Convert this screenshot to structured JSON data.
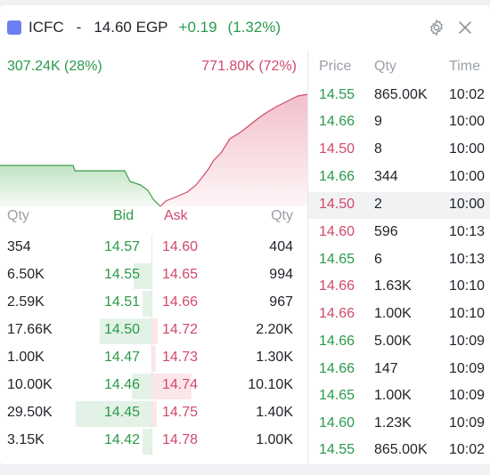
{
  "header": {
    "symbol": "ICFC",
    "separator": "-",
    "price": "14.60 EGP",
    "change": "+0.19",
    "change_pct": "(1.32%)",
    "swatch_color": "#6c7ff0",
    "settings_icon": "gear-icon",
    "close_icon": "close-icon"
  },
  "volume": {
    "buy": "307.24K (28%)",
    "sell": "771.80K (72%)",
    "buy_share": 0.28,
    "sell_share": 0.72
  },
  "orderbook": {
    "headers": {
      "qty_left": "Qty",
      "bid": "Bid",
      "ask": "Ask",
      "qty_right": "Qty"
    },
    "rows": [
      {
        "bid_qty": "354",
        "bid": "14.57",
        "ask": "14.60",
        "ask_qty": "404"
      },
      {
        "bid_qty": "6.50K",
        "bid": "14.55",
        "ask": "14.65",
        "ask_qty": "994"
      },
      {
        "bid_qty": "2.59K",
        "bid": "14.51",
        "ask": "14.66",
        "ask_qty": "967"
      },
      {
        "bid_qty": "17.66K",
        "bid": "14.50",
        "ask": "14.72",
        "ask_qty": "2.20K"
      },
      {
        "bid_qty": "1.00K",
        "bid": "14.47",
        "ask": "14.73",
        "ask_qty": "1.30K"
      },
      {
        "bid_qty": "10.00K",
        "bid": "14.46",
        "ask": "14.74",
        "ask_qty": "10.10K"
      },
      {
        "bid_qty": "29.50K",
        "bid": "14.45",
        "ask": "14.75",
        "ask_qty": "1.40K"
      },
      {
        "bid_qty": "3.15K",
        "bid": "14.42",
        "ask": "14.78",
        "ask_qty": "1.00K"
      }
    ]
  },
  "trades": {
    "headers": {
      "price": "Price",
      "qty": "Qty",
      "time": "Time"
    },
    "rows": [
      {
        "price": "14.55",
        "qty": "865.00K",
        "time": "10:02",
        "side": "up"
      },
      {
        "price": "14.66",
        "qty": "9",
        "time": "10:00",
        "side": "up"
      },
      {
        "price": "14.50",
        "qty": "8",
        "time": "10:00",
        "side": "dn"
      },
      {
        "price": "14.66",
        "qty": "344",
        "time": "10:00",
        "side": "up"
      },
      {
        "price": "14.50",
        "qty": "2",
        "time": "10:00",
        "side": "dn"
      },
      {
        "price": "14.60",
        "qty": "596",
        "time": "10:13",
        "side": "dn"
      },
      {
        "price": "14.65",
        "qty": "6",
        "time": "10:13",
        "side": "up"
      },
      {
        "price": "14.66",
        "qty": "1.63K",
        "time": "10:10",
        "side": "dn"
      },
      {
        "price": "14.66",
        "qty": "1.00K",
        "time": "10:10",
        "side": "dn"
      },
      {
        "price": "14.66",
        "qty": "5.00K",
        "time": "10:09",
        "side": "up"
      },
      {
        "price": "14.66",
        "qty": "147",
        "time": "10:09",
        "side": "up"
      },
      {
        "price": "14.65",
        "qty": "1.00K",
        "time": "10:09",
        "side": "up"
      },
      {
        "price": "14.60",
        "qty": "1.23K",
        "time": "10:09",
        "side": "up"
      },
      {
        "price": "14.55",
        "qty": "865.00K",
        "time": "10:02",
        "side": "up"
      }
    ]
  }
}
